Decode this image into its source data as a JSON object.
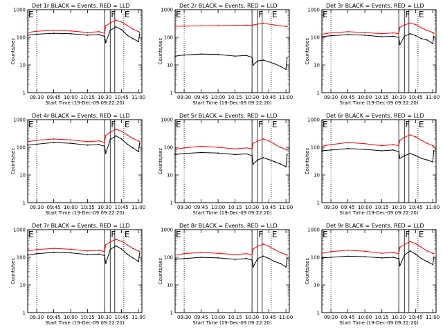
{
  "figure": {
    "xlabel": "Start Time (19-Dec-09 09:22:20)",
    "ylabel": "Counts/sec",
    "x_ticks": [
      "09:30",
      "09:45",
      "10:00",
      "10:15",
      "10:30",
      "10:45",
      "11:00"
    ],
    "y_ticks": [
      "1",
      "10",
      "100",
      "1000"
    ],
    "colors": {
      "events": "#000000",
      "lld": "#ff0000",
      "background": "#ffffff"
    }
  },
  "chart_data": [
    {
      "type": "line",
      "title": "Det 1r BLACK = Events, RED = LLD",
      "x_range": [
        "09:22",
        "11:03"
      ],
      "ylim": [
        1,
        1000
      ],
      "y_scale": "log",
      "grid": false,
      "markers": {
        "dotted": [
          "09:30",
          "10:47"
        ],
        "solid": [
          "10:30",
          "10:35",
          "10:39"
        ]
      },
      "flags": [
        {
          "time": "09:22",
          "label": "E"
        },
        {
          "time": "10:35",
          "label": "F"
        },
        {
          "time": "10:47",
          "label": "E"
        }
      ],
      "x": [
        "09:22",
        "09:30",
        "09:45",
        "10:00",
        "10:15",
        "10:25",
        "10:30",
        "10:31",
        "10:35",
        "10:40",
        "10:45",
        "10:50",
        "10:55",
        "11:00",
        "11:01"
      ],
      "series": [
        {
          "name": "Events",
          "color": "#000000",
          "values": [
            120,
            130,
            140,
            135,
            120,
            125,
            110,
            65,
            180,
            240,
            190,
            120,
            90,
            70,
            130
          ]
        },
        {
          "name": "LLD",
          "color": "#ff0000",
          "values": [
            150,
            165,
            180,
            170,
            150,
            160,
            140,
            260,
            330,
            420,
            360,
            270,
            200,
            160,
            150
          ]
        }
      ]
    },
    {
      "type": "line",
      "title": "Det 2r BLACK = Events, RED = LLD",
      "x_range": [
        "09:22",
        "11:03"
      ],
      "ylim": [
        1,
        1000
      ],
      "y_scale": "log",
      "grid": false,
      "markers": {
        "dotted": [
          "09:30",
          "10:47"
        ],
        "solid": [
          "10:30",
          "10:35",
          "10:39"
        ]
      },
      "flags": [
        {
          "time": "09:22",
          "label": "E"
        },
        {
          "time": "10:35",
          "label": "F"
        },
        {
          "time": "10:47",
          "label": "E"
        }
      ],
      "x": [
        "09:22",
        "09:30",
        "09:45",
        "10:00",
        "10:15",
        "10:25",
        "10:30",
        "10:31",
        "10:35",
        "10:40",
        "10:45",
        "10:50",
        "10:55",
        "11:00",
        "11:01"
      ],
      "series": [
        {
          "name": "Events",
          "color": "#000000",
          "values": [
            21,
            23,
            25,
            24,
            21,
            22,
            19,
            10,
            14,
            15,
            13,
            11,
            9,
            7,
            18
          ]
        },
        {
          "name": "LLD",
          "color": "#ff0000",
          "values": [
            250,
            255,
            260,
            265,
            270,
            275,
            270,
            280,
            300,
            320,
            300,
            280,
            260,
            250,
            250
          ]
        }
      ]
    },
    {
      "type": "line",
      "title": "Det 3r BLACK = Events, RED = LLD",
      "x_range": [
        "09:22",
        "11:03"
      ],
      "ylim": [
        1,
        1000
      ],
      "y_scale": "log",
      "grid": false,
      "markers": {
        "dotted": [
          "09:30",
          "10:47"
        ],
        "solid": [
          "10:30",
          "10:35",
          "10:39"
        ]
      },
      "flags": [
        {
          "time": "09:22",
          "label": "E"
        },
        {
          "time": "10:35",
          "label": "F"
        },
        {
          "time": "10:47",
          "label": "E"
        }
      ],
      "x": [
        "09:22",
        "09:30",
        "09:45",
        "10:00",
        "10:15",
        "10:25",
        "10:30",
        "10:31",
        "10:35",
        "10:40",
        "10:45",
        "10:50",
        "10:55",
        "11:00",
        "11:01"
      ],
      "series": [
        {
          "name": "Events",
          "color": "#000000",
          "values": [
            105,
            115,
            125,
            120,
            105,
            110,
            100,
            55,
            110,
            135,
            115,
            90,
            80,
            60,
            110
          ]
        },
        {
          "name": "LLD",
          "color": "#ff0000",
          "values": [
            130,
            145,
            160,
            150,
            135,
            145,
            135,
            230,
            280,
            330,
            290,
            220,
            180,
            150,
            140
          ]
        }
      ]
    },
    {
      "type": "line",
      "title": "Det 4r BLACK = Events, RED = LLD",
      "x_range": [
        "09:22",
        "11:03"
      ],
      "ylim": [
        1,
        1000
      ],
      "y_scale": "log",
      "grid": false,
      "markers": {
        "dotted": [
          "09:30",
          "10:47"
        ],
        "solid": [
          "10:30",
          "10:35",
          "10:39"
        ]
      },
      "flags": [
        {
          "time": "09:22",
          "label": "E"
        },
        {
          "time": "10:35",
          "label": "F"
        },
        {
          "time": "10:47",
          "label": "E"
        }
      ],
      "x": [
        "09:22",
        "09:30",
        "09:45",
        "10:00",
        "10:15",
        "10:25",
        "10:30",
        "10:31",
        "10:35",
        "10:40",
        "10:45",
        "10:50",
        "10:55",
        "11:00",
        "11:01"
      ],
      "series": [
        {
          "name": "Events",
          "color": "#000000",
          "values": [
            120,
            130,
            150,
            140,
            120,
            125,
            110,
            60,
            190,
            260,
            200,
            130,
            95,
            70,
            140
          ]
        },
        {
          "name": "LLD",
          "color": "#ff0000",
          "values": [
            160,
            180,
            200,
            185,
            160,
            170,
            150,
            270,
            350,
            450,
            380,
            280,
            210,
            170,
            160
          ]
        }
      ]
    },
    {
      "type": "line",
      "title": "Det 5r BLACK = Events, RED = LLD",
      "x_range": [
        "09:22",
        "11:03"
      ],
      "ylim": [
        1,
        1000
      ],
      "y_scale": "log",
      "grid": false,
      "markers": {
        "dotted": [
          "09:30",
          "10:47"
        ],
        "solid": [
          "10:30",
          "10:35",
          "10:39"
        ]
      },
      "flags": [
        {
          "time": "09:22",
          "label": "E"
        },
        {
          "time": "10:35",
          "label": "F"
        },
        {
          "time": "10:47",
          "label": "E"
        }
      ],
      "x": [
        "09:22",
        "09:30",
        "09:45",
        "10:00",
        "10:15",
        "10:25",
        "10:30",
        "10:31",
        "10:35",
        "10:40",
        "10:45",
        "10:50",
        "10:55",
        "11:00",
        "11:01"
      ],
      "series": [
        {
          "name": "Events",
          "color": "#000000",
          "values": [
            55,
            60,
            65,
            62,
            55,
            58,
            50,
            25,
            35,
            42,
            36,
            30,
            25,
            20,
            55
          ]
        },
        {
          "name": "LLD",
          "color": "#ff0000",
          "values": [
            85,
            95,
            110,
            100,
            88,
            95,
            90,
            140,
            170,
            200,
            170,
            130,
            100,
            85,
            80
          ]
        }
      ]
    },
    {
      "type": "line",
      "title": "Det 6r BLACK = Events, RED = LLD",
      "x_range": [
        "09:22",
        "11:03"
      ],
      "ylim": [
        1,
        1000
      ],
      "y_scale": "log",
      "grid": false,
      "markers": {
        "dotted": [
          "09:30",
          "10:47"
        ],
        "solid": [
          "10:30",
          "10:35",
          "10:39"
        ]
      },
      "flags": [
        {
          "time": "09:22",
          "label": "E"
        },
        {
          "time": "10:35",
          "label": "F"
        },
        {
          "time": "10:47",
          "label": "E"
        }
      ],
      "x": [
        "09:22",
        "09:30",
        "09:45",
        "10:00",
        "10:15",
        "10:25",
        "10:30",
        "10:31",
        "10:35",
        "10:40",
        "10:45",
        "10:50",
        "10:55",
        "11:00",
        "11:01"
      ],
      "series": [
        {
          "name": "Events",
          "color": "#000000",
          "values": [
            75,
            80,
            90,
            85,
            75,
            80,
            70,
            40,
            50,
            60,
            50,
            40,
            35,
            30,
            75
          ]
        },
        {
          "name": "LLD",
          "color": "#ff0000",
          "values": [
            110,
            125,
            150,
            135,
            115,
            125,
            115,
            180,
            230,
            280,
            240,
            180,
            140,
            115,
            110
          ]
        }
      ]
    },
    {
      "type": "line",
      "title": "Det 7r BLACK = Events, RED = LLD",
      "x_range": [
        "09:22",
        "11:03"
      ],
      "ylim": [
        1,
        1000
      ],
      "y_scale": "log",
      "grid": false,
      "markers": {
        "dotted": [
          "09:30",
          "10:47"
        ],
        "solid": [
          "10:30",
          "10:35",
          "10:39"
        ]
      },
      "flags": [
        {
          "time": "09:22",
          "label": "E"
        },
        {
          "time": "10:35",
          "label": "F"
        },
        {
          "time": "10:47",
          "label": "E"
        }
      ],
      "x": [
        "09:22",
        "09:30",
        "09:45",
        "10:00",
        "10:15",
        "10:25",
        "10:30",
        "10:31",
        "10:35",
        "10:40",
        "10:45",
        "10:50",
        "10:55",
        "11:00",
        "11:01"
      ],
      "series": [
        {
          "name": "Events",
          "color": "#000000",
          "values": [
            120,
            135,
            150,
            145,
            125,
            130,
            115,
            60,
            190,
            260,
            200,
            130,
            95,
            70,
            140
          ]
        },
        {
          "name": "LLD",
          "color": "#ff0000",
          "values": [
            170,
            190,
            210,
            195,
            170,
            180,
            160,
            280,
            360,
            450,
            380,
            280,
            210,
            170,
            160
          ]
        }
      ]
    },
    {
      "type": "line",
      "title": "Det 8r BLACK = Events, RED = LLD",
      "x_range": [
        "09:22",
        "11:03"
      ],
      "ylim": [
        1,
        1000
      ],
      "y_scale": "log",
      "grid": false,
      "markers": {
        "dotted": [
          "09:30",
          "10:47"
        ],
        "solid": [
          "10:30",
          "10:35",
          "10:39"
        ]
      },
      "flags": [
        {
          "time": "09:22",
          "label": "E"
        },
        {
          "time": "10:35",
          "label": "F"
        },
        {
          "time": "10:47",
          "label": "E"
        }
      ],
      "x": [
        "09:22",
        "09:30",
        "09:45",
        "10:00",
        "10:15",
        "10:25",
        "10:30",
        "10:31",
        "10:35",
        "10:40",
        "10:45",
        "10:50",
        "10:55",
        "11:00",
        "11:01"
      ],
      "series": [
        {
          "name": "Events",
          "color": "#000000",
          "values": [
            85,
            90,
            100,
            95,
            85,
            90,
            80,
            45,
            90,
            110,
            90,
            70,
            60,
            45,
            90
          ]
        },
        {
          "name": "LLD",
          "color": "#ff0000",
          "values": [
            120,
            135,
            150,
            140,
            125,
            135,
            125,
            200,
            250,
            300,
            250,
            190,
            150,
            125,
            120
          ]
        }
      ]
    },
    {
      "type": "line",
      "title": "Det 9r BLACK = Events, RED = LLD",
      "x_range": [
        "09:22",
        "11:03"
      ],
      "ylim": [
        1,
        1000
      ],
      "y_scale": "log",
      "grid": false,
      "markers": {
        "dotted": [
          "09:30",
          "10:47"
        ],
        "solid": [
          "10:30",
          "10:35",
          "10:39"
        ]
      },
      "flags": [
        {
          "time": "09:22",
          "label": "E"
        },
        {
          "time": "10:35",
          "label": "F"
        },
        {
          "time": "10:47",
          "label": "E"
        }
      ],
      "x": [
        "09:22",
        "09:30",
        "09:45",
        "10:00",
        "10:15",
        "10:25",
        "10:30",
        "10:31",
        "10:35",
        "10:40",
        "10:45",
        "10:50",
        "10:55",
        "11:00",
        "11:01"
      ],
      "series": [
        {
          "name": "Events",
          "color": "#000000",
          "values": [
            95,
            100,
            110,
            105,
            95,
            100,
            90,
            50,
            120,
            170,
            130,
            90,
            70,
            55,
            100
          ]
        },
        {
          "name": "LLD",
          "color": "#ff0000",
          "values": [
            140,
            160,
            180,
            165,
            140,
            150,
            135,
            230,
            290,
            370,
            310,
            230,
            170,
            140,
            135
          ]
        }
      ]
    }
  ]
}
